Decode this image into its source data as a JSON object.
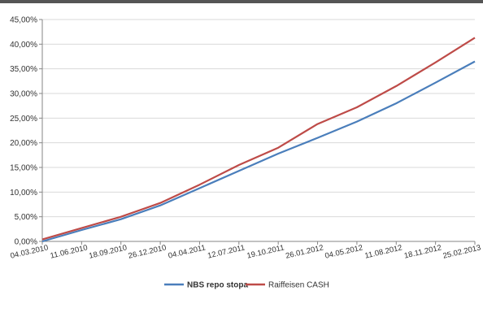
{
  "chart_data": {
    "type": "line",
    "title": "",
    "xlabel": "",
    "ylabel": "",
    "ylim": [
      0,
      0.45
    ],
    "y_ticks": [
      "0,00%",
      "5,00%",
      "10,00%",
      "15,00%",
      "20,00%",
      "25,00%",
      "30,00%",
      "35,00%",
      "40,00%",
      "45,00%"
    ],
    "x_ticks": [
      "04.03.2010",
      "11.06.2010",
      "18.09.2010",
      "26.12.2010",
      "04.04.2011",
      "12.07.2011",
      "19.10.2011",
      "26.01.2012",
      "04.05.2012",
      "11.08.2012",
      "18.11.2012",
      "25.02.2013"
    ],
    "x_range": [
      "04.03.2010",
      "25.02.2013"
    ],
    "grid": true,
    "legend_position": "bottom",
    "series": [
      {
        "name": "NBS repo stopa",
        "color": "#4a7ebb",
        "x": [
          "04.03.2010",
          "11.06.2010",
          "18.09.2010",
          "26.12.2010",
          "04.04.2011",
          "12.07.2011",
          "19.10.2011",
          "26.01.2012",
          "04.05.2012",
          "11.08.2012",
          "18.11.2012",
          "25.02.2013"
        ],
        "values": [
          0.0,
          0.023,
          0.045,
          0.073,
          0.108,
          0.143,
          0.178,
          0.21,
          0.243,
          0.28,
          0.322,
          0.365
        ]
      },
      {
        "name": "Raiffeisen CASH",
        "color": "#be4b48",
        "x": [
          "04.03.2010",
          "11.06.2010",
          "18.09.2010",
          "26.12.2010",
          "04.04.2011",
          "12.07.2011",
          "19.10.2011",
          "26.01.2012",
          "04.05.2012",
          "11.08.2012",
          "18.11.2012",
          "25.02.2013"
        ],
        "values": [
          0.004,
          0.027,
          0.05,
          0.078,
          0.115,
          0.155,
          0.19,
          0.238,
          0.272,
          0.315,
          0.363,
          0.413
        ]
      }
    ]
  }
}
